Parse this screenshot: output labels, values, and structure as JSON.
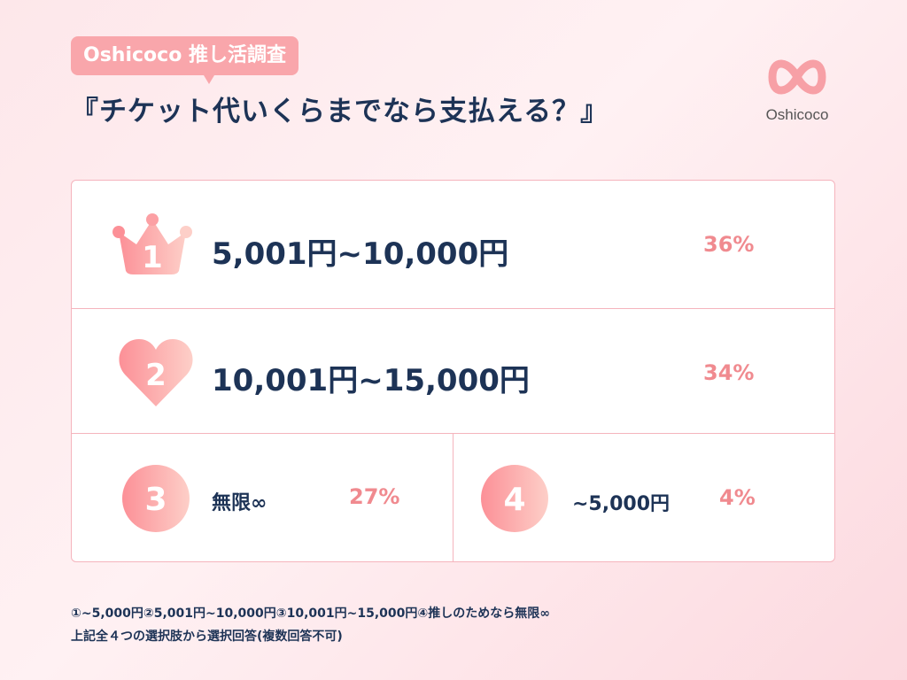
{
  "header": {
    "tag": "Oshicoco 推し活調査",
    "title": "『チケット代いくらまでなら支払える？』",
    "logo_text": "Oshicoco"
  },
  "ranking": [
    {
      "rank": "1",
      "icon": "crown-icon",
      "label": "5,001円~10,000円",
      "percent": "36%"
    },
    {
      "rank": "2",
      "icon": "heart-icon",
      "label": "10,001円~15,000円",
      "percent": "34%"
    },
    {
      "rank": "3",
      "icon": "circle-icon",
      "label": "無限∞",
      "percent": "27%"
    },
    {
      "rank": "4",
      "icon": "circle-icon",
      "label": "~5,000円",
      "percent": "4%"
    }
  ],
  "notes": [
    "①~5,000円②5,001円~10,000円③10,001円~15,000円④推しのためなら無限∞",
    "上記全４つの選択肢から選択回答(複数回答不可)"
  ],
  "colors": {
    "accent": "#f08a8f",
    "text": "#1d3356",
    "border": "#f5b4bd"
  }
}
